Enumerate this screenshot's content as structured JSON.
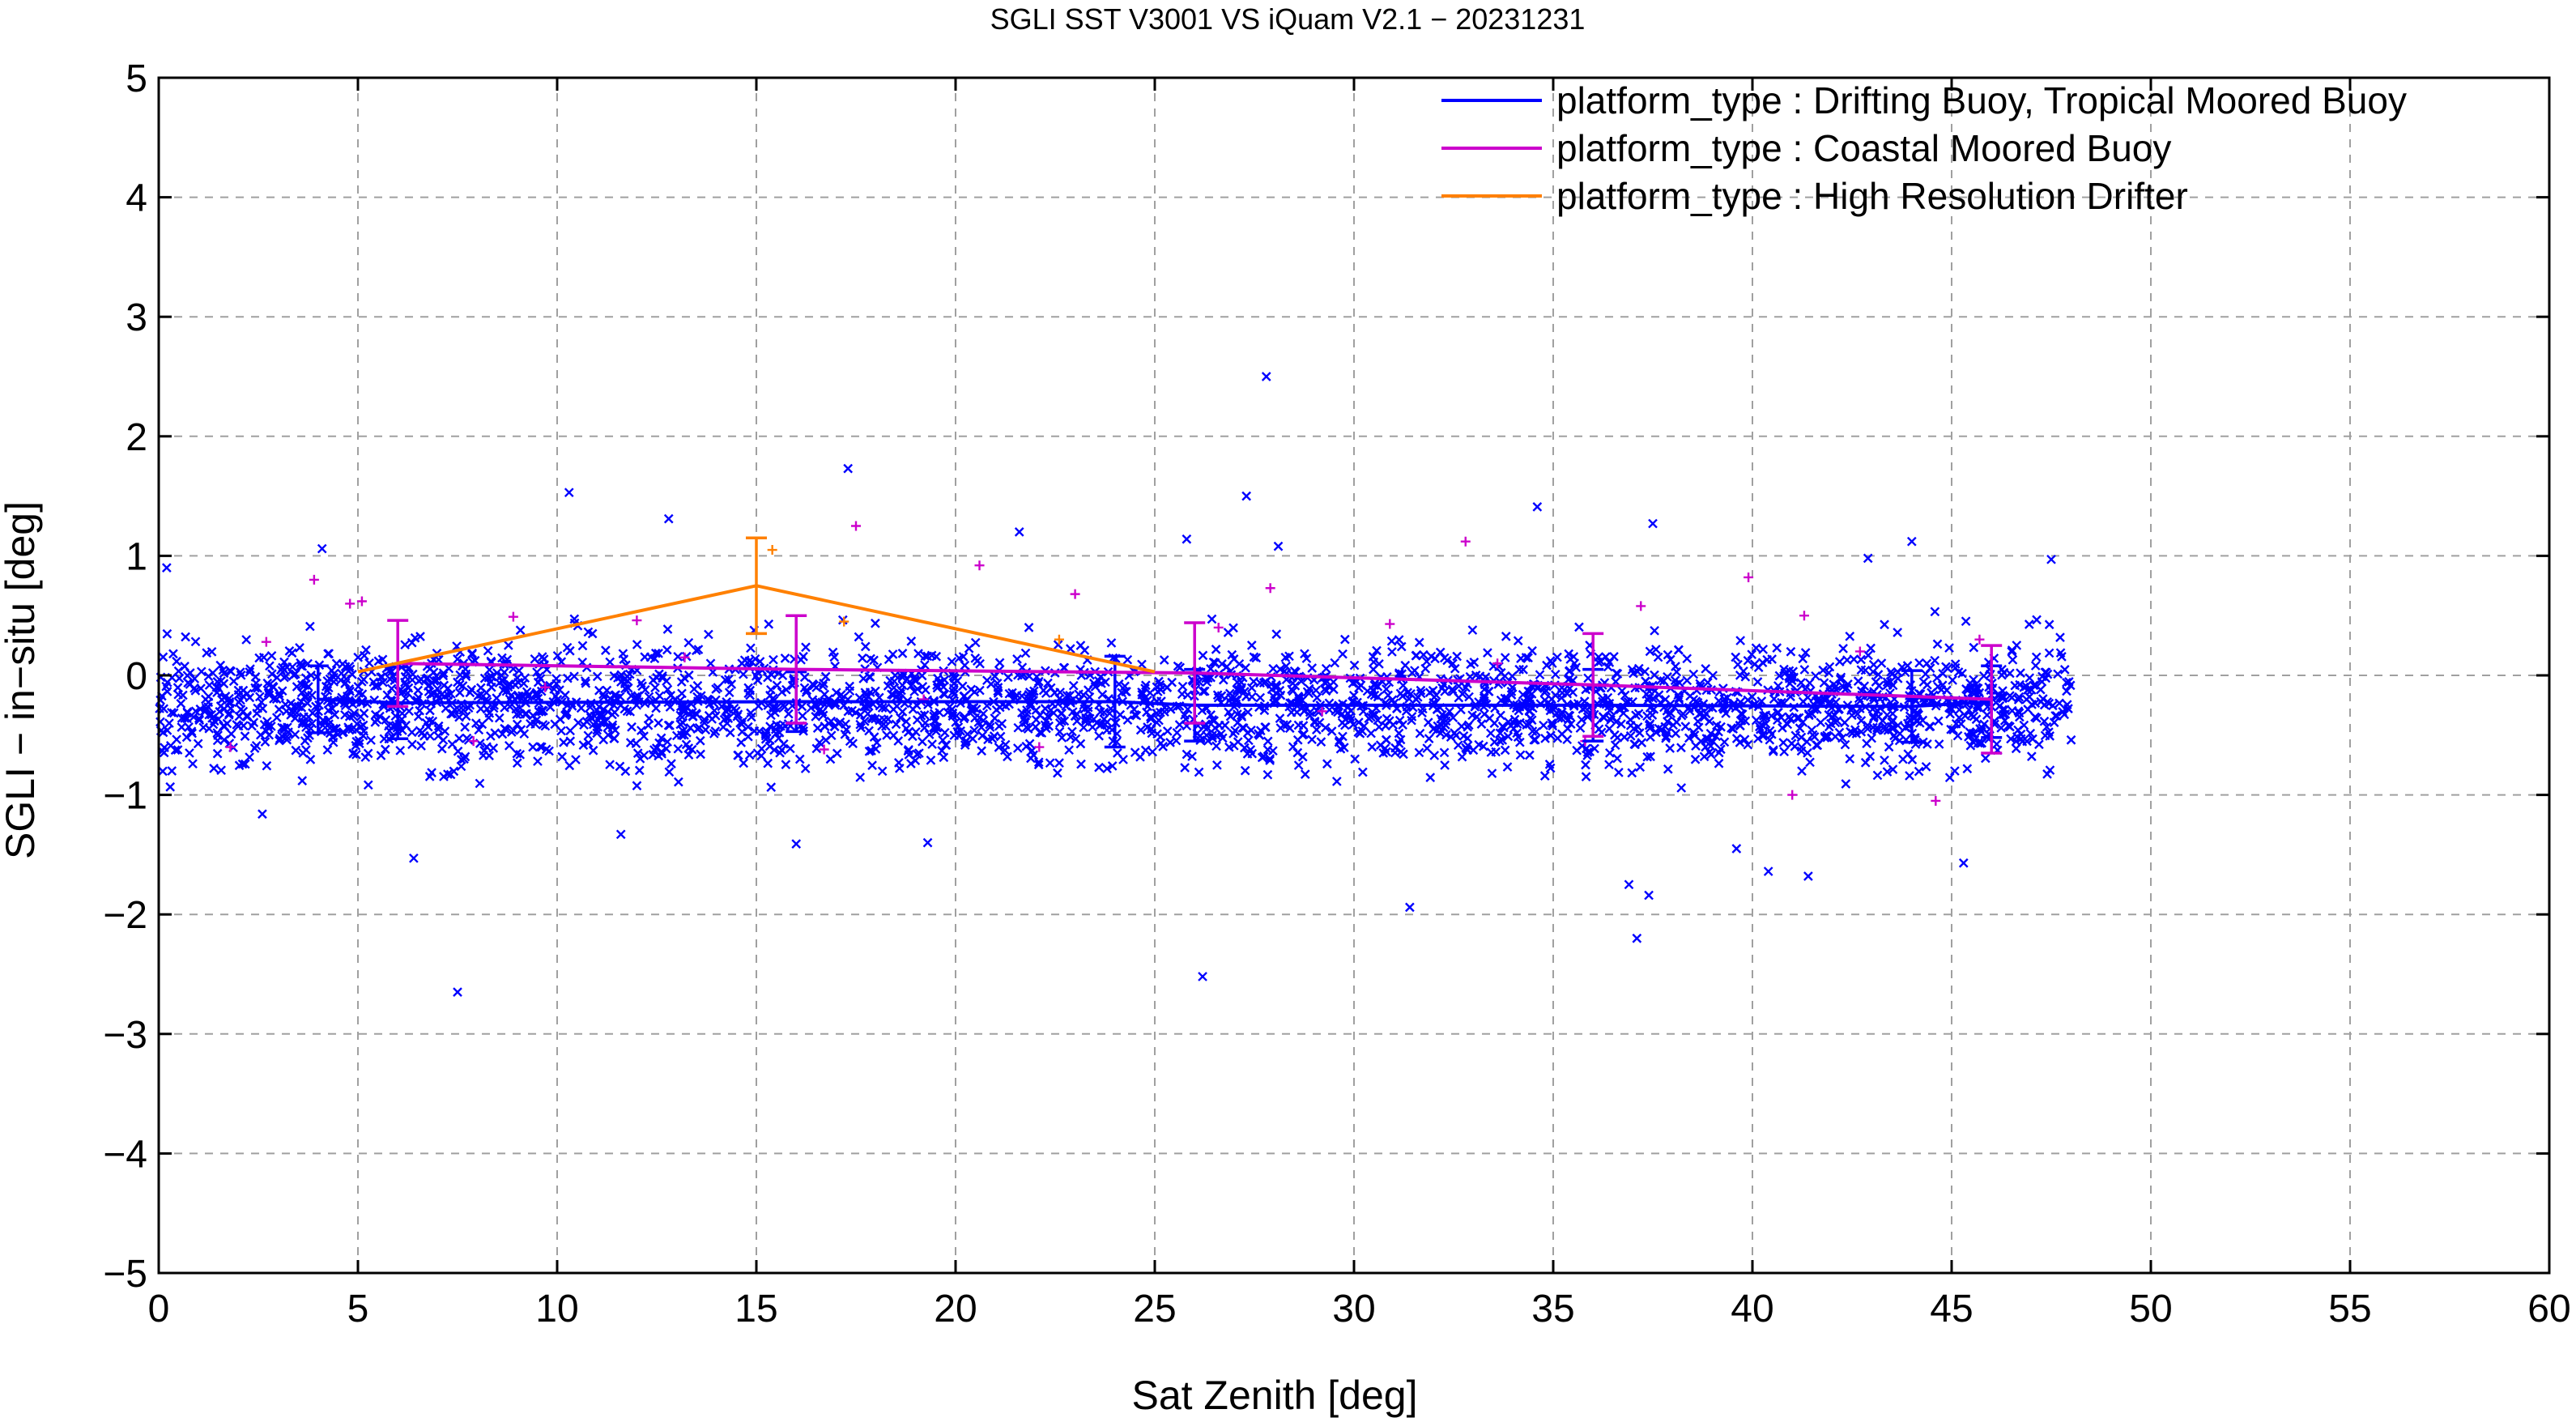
{
  "chart_data": {
    "type": "scatter",
    "title": "SGLI SST V3001 VS iQuam V2.1  − 20231231",
    "xlabel": "Sat Zenith [deg]",
    "ylabel": "SGLI − in−situ [deg]",
    "xlim": [
      0,
      60
    ],
    "ylim": [
      -5,
      5
    ],
    "xticks": [
      "0",
      "5",
      "10",
      "15",
      "20",
      "25",
      "30",
      "35",
      "40",
      "45",
      "50",
      "55",
      "60"
    ],
    "yticks": [
      "5",
      "4",
      "3",
      "2",
      "1",
      "0",
      "−1",
      "−2",
      "−3",
      "−4",
      "−5"
    ],
    "grid": true,
    "legend_position": "top-right",
    "series": [
      {
        "name": "platform_type : Drifting Buoy, Tropical Moored Buoy",
        "color": "#0000ff",
        "marker": "x",
        "scatter_x_range": [
          0,
          48
        ],
        "scatter_y_center": -0.25,
        "scatter_y_spread": 0.45,
        "scatter_count": 3000,
        "outliers": [
          {
            "x": 27.8,
            "y": 2.5
          },
          {
            "x": 17.3,
            "y": 1.73
          },
          {
            "x": 10.3,
            "y": 1.53
          },
          {
            "x": 27.3,
            "y": 1.5
          },
          {
            "x": 34.6,
            "y": 1.41
          },
          {
            "x": 12.8,
            "y": 1.31
          },
          {
            "x": 37.5,
            "y": 1.27
          },
          {
            "x": 21.6,
            "y": 1.2
          },
          {
            "x": 25.8,
            "y": 1.14
          },
          {
            "x": 44.0,
            "y": 1.12
          },
          {
            "x": 28.1,
            "y": 1.08
          },
          {
            "x": 4.1,
            "y": 1.06
          },
          {
            "x": 47.5,
            "y": 0.97
          },
          {
            "x": 0.2,
            "y": 0.9
          },
          {
            "x": 42.9,
            "y": 0.98
          },
          {
            "x": 7.5,
            "y": -2.65
          },
          {
            "x": 26.2,
            "y": -2.52
          },
          {
            "x": 37.1,
            "y": -2.2
          },
          {
            "x": 31.4,
            "y": -1.94
          },
          {
            "x": 37.4,
            "y": -1.84
          },
          {
            "x": 36.9,
            "y": -1.75
          },
          {
            "x": 41.4,
            "y": -1.68
          },
          {
            "x": 40.4,
            "y": -1.64
          },
          {
            "x": 45.3,
            "y": -1.57
          },
          {
            "x": 6.4,
            "y": -1.53
          },
          {
            "x": 19.3,
            "y": -1.4
          },
          {
            "x": 16.0,
            "y": -1.41
          },
          {
            "x": 11.6,
            "y": -1.33
          },
          {
            "x": 2.6,
            "y": -1.16
          },
          {
            "x": 39.6,
            "y": -1.45
          }
        ],
        "mean_line": {
          "x": [
            4,
            6,
            16,
            24,
            26,
            36,
            44,
            46
          ],
          "y": [
            -0.2,
            -0.23,
            -0.22,
            -0.22,
            -0.25,
            -0.25,
            -0.26,
            -0.22
          ],
          "err": [
            0.28,
            0.3,
            0.25,
            0.38,
            0.3,
            0.3,
            0.3,
            0.3
          ]
        }
      },
      {
        "name": "platform_type : Coastal Moored Buoy",
        "color": "#cc00cc",
        "marker": "+",
        "points": [
          {
            "x": 3.9,
            "y": 0.8
          },
          {
            "x": 4.8,
            "y": 0.6
          },
          {
            "x": 5.1,
            "y": 0.62
          },
          {
            "x": 2.7,
            "y": 0.28
          },
          {
            "x": 8.9,
            "y": 0.49
          },
          {
            "x": 12.0,
            "y": 0.46
          },
          {
            "x": 17.5,
            "y": 1.25
          },
          {
            "x": 20.6,
            "y": 0.92
          },
          {
            "x": 23.0,
            "y": 0.68
          },
          {
            "x": 27.9,
            "y": 0.73
          },
          {
            "x": 30.9,
            "y": 0.43
          },
          {
            "x": 32.8,
            "y": 1.12
          },
          {
            "x": 37.2,
            "y": 0.58
          },
          {
            "x": 39.9,
            "y": 0.82
          },
          {
            "x": 41.3,
            "y": 0.5
          },
          {
            "x": 45.7,
            "y": 0.3
          },
          {
            "x": 1.8,
            "y": -0.6
          },
          {
            "x": 7.9,
            "y": -0.55
          },
          {
            "x": 16.7,
            "y": -0.62
          },
          {
            "x": 22.1,
            "y": -0.6
          },
          {
            "x": 35.8,
            "y": -0.55
          },
          {
            "x": 41.0,
            "y": -1.0
          },
          {
            "x": 44.6,
            "y": -1.05
          },
          {
            "x": 13.2,
            "y": 0.15
          },
          {
            "x": 19.2,
            "y": -0.2
          },
          {
            "x": 29.2,
            "y": -0.3
          },
          {
            "x": 33.6,
            "y": 0.1
          },
          {
            "x": 42.7,
            "y": 0.2
          },
          {
            "x": 9.7,
            "y": -0.1
          },
          {
            "x": 26.6,
            "y": 0.4
          }
        ],
        "mean_line": {
          "x": [
            6,
            16,
            26,
            36,
            46
          ],
          "y": [
            0.1,
            0.05,
            0.02,
            -0.08,
            -0.2
          ],
          "err": [
            0.36,
            0.45,
            0.42,
            0.43,
            0.45
          ]
        }
      },
      {
        "name": "platform_type : High Resolution Drifter",
        "color": "#ff8000",
        "marker": "+",
        "points": [
          {
            "x": 15.4,
            "y": 1.05
          },
          {
            "x": 22.6,
            "y": 0.3
          },
          {
            "x": 17.2,
            "y": 0.45
          }
        ],
        "mean_line": {
          "x": [
            5,
            15,
            25
          ],
          "y": [
            0.03,
            0.75,
            0.03
          ],
          "err": [
            0,
            0.4,
            0
          ]
        }
      }
    ]
  }
}
